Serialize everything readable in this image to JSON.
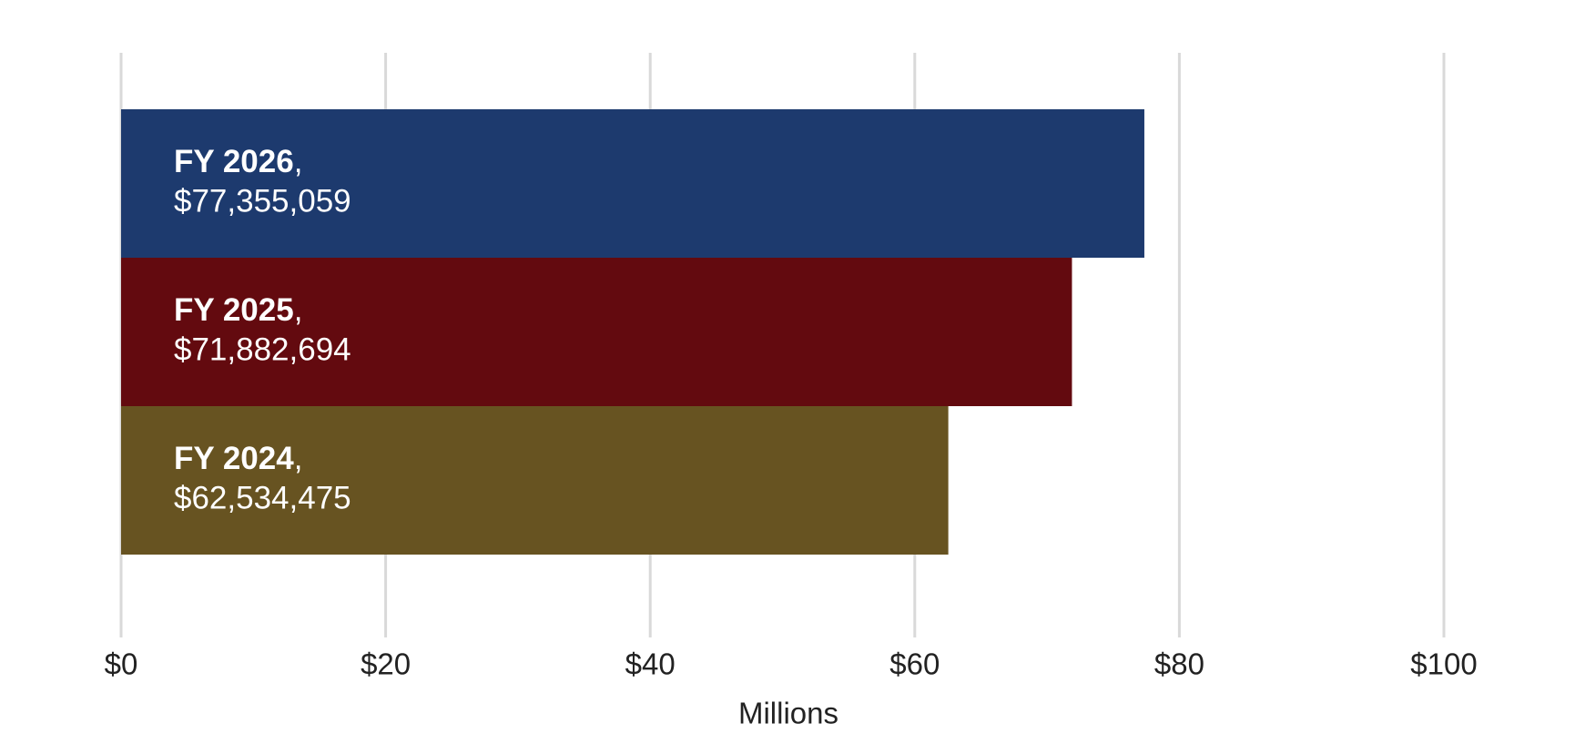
{
  "chart_data": {
    "type": "bar",
    "orientation": "horizontal",
    "categories": [
      "FY 2026",
      "FY 2025",
      "FY 2024"
    ],
    "values": [
      77.355059,
      71.882694,
      62.534475
    ],
    "value_labels": [
      "$77,355,059",
      "$71,882,694",
      "$62,534,475"
    ],
    "label_separator": ",",
    "colors": [
      "#1d3a6e",
      "#630a0f",
      "#675321"
    ],
    "xlabel": "Millions",
    "xlim": [
      0,
      100
    ],
    "xticks": [
      {
        "value": 0,
        "label": "$0"
      },
      {
        "value": 20,
        "label": "$20"
      },
      {
        "value": 40,
        "label": "$40"
      },
      {
        "value": 60,
        "label": "$60"
      },
      {
        "value": 80,
        "label": "$80"
      },
      {
        "value": 100,
        "label": "$100"
      }
    ],
    "grid": true
  }
}
